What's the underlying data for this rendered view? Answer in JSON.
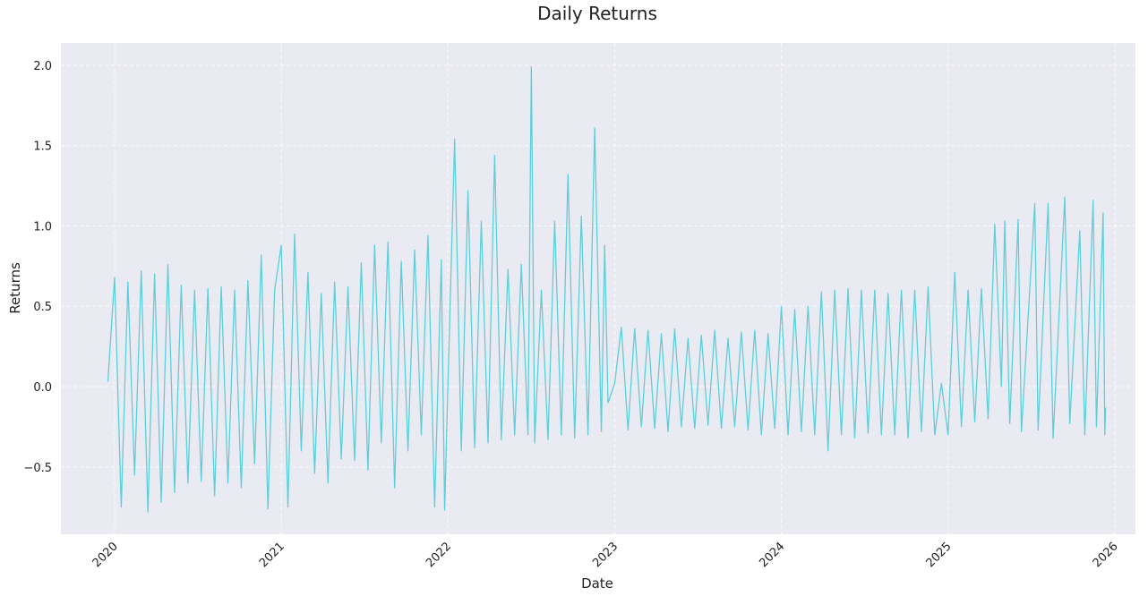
{
  "chart_data": {
    "type": "line",
    "title": "Daily Returns",
    "x_label": "Date",
    "y_label": "Returns",
    "xlim": [
      2019.678,
      2026.124
    ],
    "ylim": [
      -0.919,
      2.139
    ],
    "xticks": [
      2020,
      2021,
      2022,
      2023,
      2024,
      2025,
      2026
    ],
    "yticks": [
      {
        "value": -0.5,
        "label": "−0.5"
      },
      {
        "value": 0,
        "label": "0.0"
      },
      0.5,
      {
        "value": 1,
        "label": "1.0"
      },
      1.5,
      {
        "value": 2,
        "label": "2.0"
      }
    ],
    "grid": true,
    "series": [
      {
        "color": "#5ccfdb",
        "x": [
          2019.96,
          2020.0,
          2020.04,
          2020.08,
          2020.12,
          2020.16,
          2020.2,
          2020.24,
          2020.28,
          2020.32,
          2020.36,
          2020.4,
          2020.44,
          2020.48,
          2020.52,
          2020.56,
          2020.6,
          2020.64,
          2020.68,
          2020.72,
          2020.76,
          2020.8,
          2020.84,
          2020.88,
          2020.92,
          2020.96,
          2021.0,
          2021.04,
          2021.08,
          2021.12,
          2021.16,
          2021.2,
          2021.24,
          2021.28,
          2021.32,
          2021.36,
          2021.4,
          2021.44,
          2021.48,
          2021.52,
          2021.56,
          2021.6,
          2021.64,
          2021.68,
          2021.72,
          2021.76,
          2021.8,
          2021.84,
          2021.88,
          2021.92,
          2021.96,
          2021.98,
          2022.0,
          2022.04,
          2022.08,
          2022.12,
          2022.16,
          2022.2,
          2022.24,
          2022.28,
          2022.32,
          2022.36,
          2022.4,
          2022.44,
          2022.48,
          2022.5,
          2022.52,
          2022.56,
          2022.6,
          2022.64,
          2022.68,
          2022.72,
          2022.76,
          2022.8,
          2022.84,
          2022.88,
          2022.92,
          2022.94,
          2022.96,
          2023.0,
          2023.04,
          2023.08,
          2023.12,
          2023.16,
          2023.2,
          2023.24,
          2023.28,
          2023.32,
          2023.36,
          2023.4,
          2023.44,
          2023.48,
          2023.52,
          2023.56,
          2023.6,
          2023.64,
          2023.68,
          2023.72,
          2023.76,
          2023.8,
          2023.84,
          2023.88,
          2023.92,
          2023.96,
          2024.0,
          2024.04,
          2024.08,
          2024.12,
          2024.16,
          2024.2,
          2024.24,
          2024.28,
          2024.32,
          2024.36,
          2024.4,
          2024.44,
          2024.48,
          2024.52,
          2024.56,
          2024.6,
          2024.64,
          2024.68,
          2024.72,
          2024.76,
          2024.8,
          2024.84,
          2024.88,
          2024.92,
          2024.96,
          2025.0,
          2025.04,
          2025.08,
          2025.12,
          2025.16,
          2025.2,
          2025.24,
          2025.28,
          2025.32,
          2025.34,
          2025.37,
          2025.42,
          2025.44,
          2025.52,
          2025.54,
          2025.6,
          2025.63,
          2025.7,
          2025.73,
          2025.79,
          2025.82,
          2025.87,
          2025.89,
          2025.93,
          2025.94,
          2025.945
        ],
        "values": [
          0.03,
          0.68,
          -0.75,
          0.65,
          -0.55,
          0.72,
          -0.78,
          0.7,
          -0.72,
          0.76,
          -0.66,
          0.63,
          -0.6,
          0.6,
          -0.59,
          0.61,
          -0.68,
          0.62,
          -0.6,
          0.6,
          -0.63,
          0.66,
          -0.48,
          0.82,
          -0.76,
          0.6,
          0.88,
          -0.75,
          0.95,
          -0.4,
          0.71,
          -0.54,
          0.58,
          -0.6,
          0.65,
          -0.45,
          0.62,
          -0.46,
          0.77,
          -0.52,
          0.88,
          -0.35,
          0.9,
          -0.63,
          0.78,
          -0.4,
          0.85,
          -0.3,
          0.94,
          -0.75,
          0.79,
          -0.77,
          0.02,
          1.54,
          -0.4,
          1.22,
          -0.38,
          1.03,
          -0.35,
          1.44,
          -0.33,
          0.73,
          -0.3,
          0.76,
          -0.3,
          1.99,
          -0.35,
          0.6,
          -0.33,
          1.03,
          -0.3,
          1.32,
          -0.32,
          1.06,
          -0.3,
          1.61,
          -0.28,
          0.88,
          -0.1,
          0.02,
          0.37,
          -0.27,
          0.36,
          -0.25,
          0.35,
          -0.26,
          0.33,
          -0.28,
          0.36,
          -0.25,
          0.3,
          -0.26,
          0.32,
          -0.24,
          0.35,
          -0.26,
          0.3,
          -0.25,
          0.34,
          -0.27,
          0.35,
          -0.3,
          0.33,
          -0.26,
          0.5,
          -0.3,
          0.48,
          -0.28,
          0.5,
          -0.3,
          0.59,
          -0.4,
          0.6,
          -0.3,
          0.61,
          -0.32,
          0.6,
          -0.29,
          0.6,
          -0.3,
          0.58,
          -0.3,
          0.6,
          -0.32,
          0.6,
          -0.28,
          0.62,
          -0.3,
          0.02,
          -0.3,
          0.71,
          -0.25,
          0.6,
          -0.22,
          0.61,
          -0.2,
          1.01,
          0.0,
          1.03,
          -0.23,
          1.04,
          -0.28,
          1.14,
          -0.27,
          1.14,
          -0.32,
          1.18,
          -0.23,
          0.97,
          -0.3,
          1.16,
          -0.25,
          1.08,
          -0.3,
          -0.13
        ]
      }
    ]
  }
}
